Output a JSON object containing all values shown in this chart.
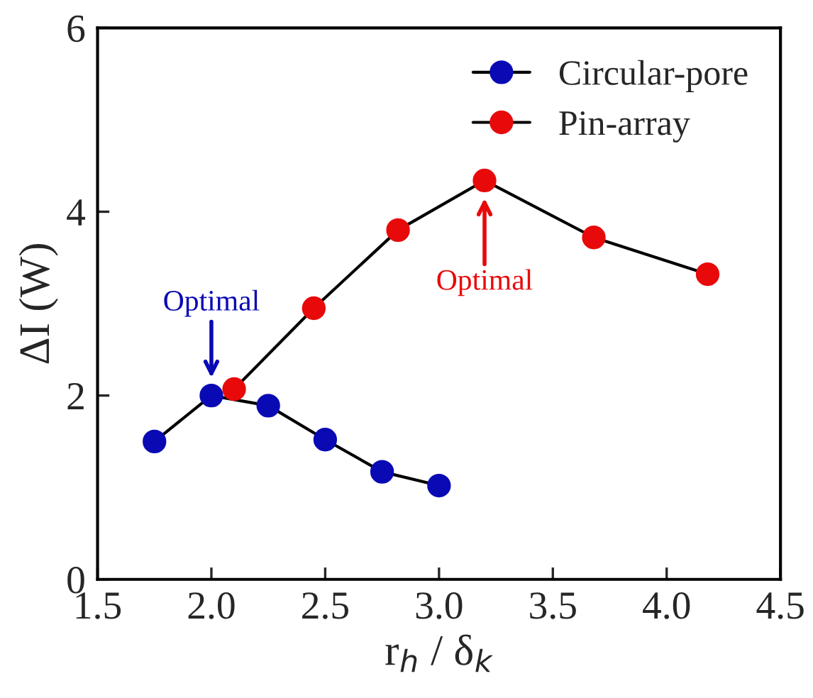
{
  "chart_data": {
    "type": "line",
    "xlabel": "r$_{h}$ / δ$_{k}$",
    "ylabel": "ΔI (W)",
    "series": [
      {
        "name": "Circular-pore",
        "color": "#0a0ab4",
        "x": [
          1.75,
          2.0,
          2.25,
          2.5,
          2.75,
          3.0
        ],
        "values": [
          1.5,
          2.0,
          1.89,
          1.52,
          1.17,
          1.02
        ]
      },
      {
        "name": "Pin-array",
        "color": "#e80a0a",
        "x": [
          2.1,
          2.45,
          2.82,
          3.2,
          3.68,
          4.18
        ],
        "values": [
          2.07,
          2.95,
          3.8,
          4.34,
          3.72,
          3.32
        ]
      }
    ],
    "annotations": [
      {
        "text": "Optimal",
        "x": 2.0,
        "y": 2.0
      },
      {
        "text": "Optimal",
        "x": 3.2,
        "y": 4.34
      }
    ],
    "xlim": [
      1.5,
      4.5
    ],
    "xticks": [
      {
        "value": 1.5,
        "label": "1.5"
      },
      {
        "value": 2.0,
        "label": "2.0"
      },
      {
        "value": 2.5,
        "label": "2.5"
      },
      {
        "value": 3.0,
        "label": "3.0"
      },
      {
        "value": 3.5,
        "label": "3.5"
      },
      {
        "value": 4.0,
        "label": "4.0"
      },
      {
        "value": 4.5,
        "label": "4.5"
      }
    ],
    "ylim": [
      0,
      6
    ],
    "yticks": [
      0,
      2,
      4,
      6
    ],
    "marker": "circle",
    "line_style": "solid",
    "legend": "top right",
    "grid": false
  }
}
